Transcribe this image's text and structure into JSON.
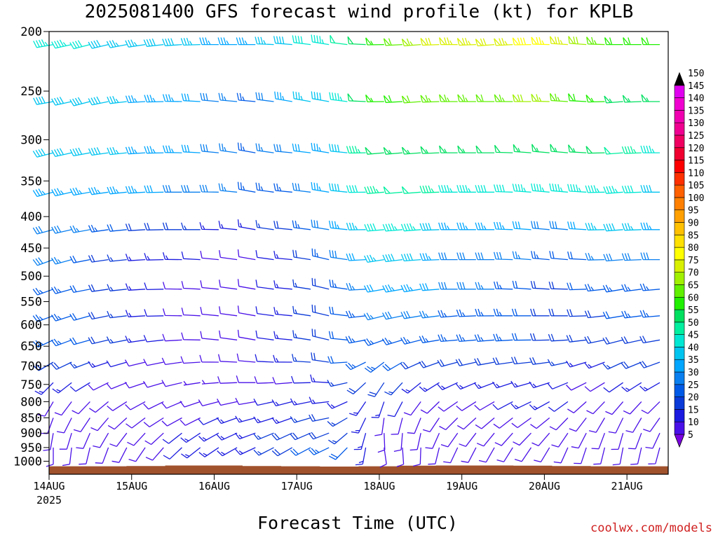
{
  "title": "2025081400 GFS forecast wind profile (kt) for KPLB",
  "xlabel": "Forecast Time (UTC)",
  "credit": "coolwx.com/models",
  "chart_data": {
    "type": "wind_barb_profile",
    "model": "GFS",
    "station": "KPLB",
    "init": "2025081400",
    "units": "kt",
    "y_axis": {
      "label": "",
      "scale": "log",
      "range": [
        1050,
        200
      ],
      "ticks": [
        200,
        250,
        300,
        350,
        400,
        450,
        500,
        550,
        600,
        650,
        700,
        750,
        800,
        850,
        900,
        950,
        1000
      ]
    },
    "x_axis": {
      "range_hours": [
        0,
        180
      ],
      "ticks": [
        {
          "hour": 0,
          "label": "14AUG",
          "sublabel": "2025"
        },
        {
          "hour": 24,
          "label": "15AUG",
          "sublabel": ""
        },
        {
          "hour": 48,
          "label": "16AUG",
          "sublabel": ""
        },
        {
          "hour": 72,
          "label": "17AUG",
          "sublabel": ""
        },
        {
          "hour": 96,
          "label": "18AUG",
          "sublabel": ""
        },
        {
          "hour": 120,
          "label": "19AUG",
          "sublabel": ""
        },
        {
          "hour": 144,
          "label": "20AUG",
          "sublabel": ""
        },
        {
          "hour": 168,
          "label": "21AUG",
          "sublabel": ""
        }
      ]
    },
    "colorbar": {
      "levels": [
        5,
        10,
        15,
        20,
        25,
        30,
        35,
        40,
        45,
        50,
        55,
        60,
        65,
        70,
        75,
        80,
        85,
        90,
        95,
        100,
        105,
        110,
        115,
        120,
        125,
        130,
        135,
        140,
        145,
        150
      ],
      "colors": [
        "#7a00e0",
        "#4a10e8",
        "#1a1ae0",
        "#0a3ad8",
        "#005ae8",
        "#0a80f0",
        "#00a6ff",
        "#00c4f0",
        "#00e8d4",
        "#00f0a0",
        "#00e060",
        "#20f000",
        "#60f000",
        "#a0f000",
        "#d8f000",
        "#ffff00",
        "#ffe000",
        "#ffc000",
        "#ffa000",
        "#ff8000",
        "#ff6000",
        "#ff3000",
        "#ff0000",
        "#f00030",
        "#f00060",
        "#f00090",
        "#f000b0",
        "#f000d0",
        "#e000f0",
        "#000000"
      ]
    },
    "levels_hpa": [
      210,
      260,
      315,
      365,
      420,
      470,
      525,
      580,
      635,
      690,
      745,
      800,
      850,
      900,
      950
    ],
    "timeline_hours": [
      0,
      12,
      24,
      36,
      48,
      60,
      72,
      84,
      96,
      108,
      120,
      132,
      144,
      156,
      168,
      180
    ],
    "wind_direction_deg": [
      [
        260,
        255,
        260,
        265,
        270,
        270,
        275,
        280,
        270,
        265,
        270,
        265,
        270,
        275,
        270,
        270
      ],
      [
        260,
        255,
        265,
        270,
        275,
        275,
        280,
        280,
        270,
        265,
        270,
        270,
        270,
        275,
        265,
        270
      ],
      [
        255,
        260,
        265,
        270,
        275,
        280,
        275,
        280,
        265,
        265,
        270,
        270,
        275,
        275,
        265,
        270
      ],
      [
        255,
        260,
        265,
        270,
        270,
        280,
        275,
        280,
        265,
        265,
        270,
        270,
        275,
        275,
        265,
        270
      ],
      [
        255,
        260,
        265,
        270,
        270,
        280,
        275,
        280,
        265,
        265,
        270,
        270,
        275,
        275,
        265,
        270
      ],
      [
        250,
        260,
        265,
        270,
        275,
        280,
        275,
        285,
        260,
        265,
        270,
        270,
        275,
        275,
        265,
        270
      ],
      [
        250,
        260,
        265,
        270,
        275,
        280,
        275,
        285,
        260,
        260,
        270,
        270,
        275,
        270,
        260,
        265
      ],
      [
        250,
        255,
        265,
        270,
        275,
        280,
        275,
        285,
        255,
        260,
        265,
        270,
        270,
        270,
        260,
        265
      ],
      [
        245,
        255,
        260,
        265,
        275,
        280,
        275,
        285,
        250,
        255,
        265,
        265,
        270,
        265,
        255,
        260
      ],
      [
        240,
        250,
        255,
        260,
        270,
        275,
        270,
        280,
        230,
        245,
        255,
        260,
        265,
        255,
        245,
        250
      ],
      [
        225,
        240,
        250,
        255,
        265,
        270,
        265,
        275,
        210,
        230,
        245,
        250,
        255,
        245,
        235,
        240
      ],
      [
        210,
        225,
        240,
        245,
        255,
        260,
        255,
        265,
        195,
        215,
        235,
        240,
        245,
        230,
        220,
        225
      ],
      [
        200,
        215,
        230,
        240,
        245,
        255,
        250,
        260,
        185,
        200,
        225,
        230,
        235,
        220,
        205,
        215
      ],
      [
        190,
        205,
        220,
        230,
        240,
        250,
        245,
        250,
        175,
        190,
        215,
        220,
        225,
        210,
        195,
        205
      ],
      [
        180,
        195,
        210,
        225,
        235,
        245,
        240,
        245,
        170,
        180,
        205,
        210,
        215,
        200,
        190,
        195
      ]
    ],
    "wind_speed_kt": [
      [
        45,
        40,
        35,
        40,
        35,
        35,
        40,
        45,
        55,
        65,
        75,
        70,
        80,
        70,
        60,
        60
      ],
      [
        40,
        40,
        35,
        35,
        30,
        25,
        35,
        40,
        55,
        60,
        65,
        60,
        70,
        60,
        55,
        55
      ],
      [
        40,
        40,
        35,
        35,
        30,
        25,
        30,
        35,
        50,
        55,
        55,
        50,
        55,
        55,
        50,
        45
      ],
      [
        35,
        35,
        35,
        30,
        30,
        25,
        25,
        35,
        45,
        50,
        45,
        40,
        45,
        45,
        45,
        40
      ],
      [
        30,
        25,
        20,
        20,
        15,
        15,
        20,
        30,
        40,
        45,
        35,
        35,
        30,
        30,
        40,
        35
      ],
      [
        30,
        20,
        15,
        15,
        10,
        10,
        15,
        25,
        35,
        40,
        30,
        30,
        25,
        20,
        30,
        30
      ],
      [
        25,
        20,
        15,
        10,
        10,
        10,
        15,
        20,
        30,
        35,
        30,
        25,
        20,
        20,
        25,
        25
      ],
      [
        25,
        20,
        15,
        10,
        10,
        10,
        15,
        20,
        25,
        30,
        25,
        25,
        20,
        20,
        20,
        25
      ],
      [
        25,
        20,
        15,
        10,
        10,
        10,
        15,
        20,
        25,
        25,
        25,
        25,
        20,
        20,
        20,
        20
      ],
      [
        20,
        15,
        10,
        10,
        10,
        10,
        15,
        20,
        25,
        20,
        20,
        20,
        20,
        15,
        15,
        20
      ],
      [
        15,
        10,
        10,
        10,
        5,
        10,
        10,
        15,
        20,
        15,
        15,
        15,
        15,
        10,
        10,
        15
      ],
      [
        10,
        10,
        10,
        10,
        10,
        10,
        15,
        15,
        15,
        10,
        10,
        10,
        15,
        10,
        10,
        10
      ],
      [
        10,
        10,
        10,
        10,
        10,
        15,
        15,
        20,
        10,
        10,
        10,
        10,
        10,
        10,
        10,
        10
      ],
      [
        10,
        10,
        10,
        10,
        15,
        15,
        20,
        20,
        10,
        10,
        10,
        10,
        10,
        10,
        10,
        10
      ],
      [
        10,
        10,
        10,
        10,
        15,
        15,
        20,
        25,
        10,
        10,
        10,
        10,
        10,
        10,
        10,
        10
      ]
    ],
    "terrain_surface_hpa": [
      1019,
      1019,
      1018,
      1016,
      1016,
      1018,
      1019,
      1020,
      1019,
      1017,
      1016,
      1016,
      1017,
      1018,
      1019,
      1019,
      1019
    ]
  }
}
